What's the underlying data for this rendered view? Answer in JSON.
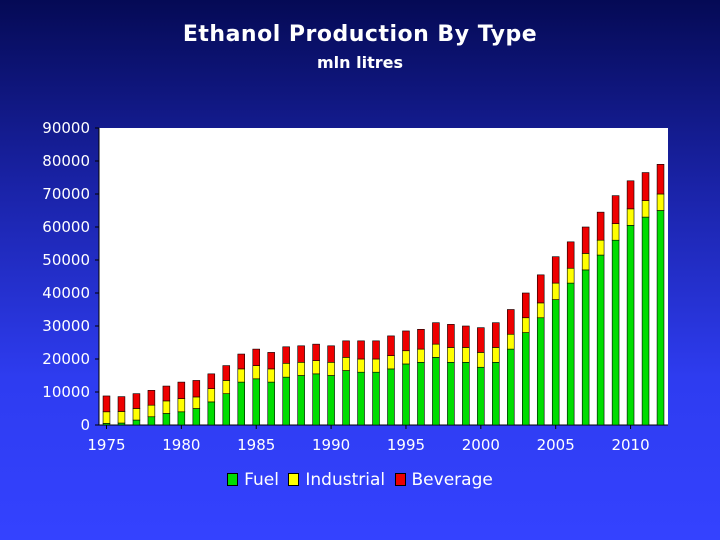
{
  "chart_data": {
    "type": "bar",
    "stacked": true,
    "title": "Ethanol Production By Type",
    "subtitle": "mln litres",
    "xlabel": "",
    "ylabel": "",
    "ylim": [
      0,
      90000
    ],
    "yticks": [
      "0",
      "10000",
      "20000",
      "30000",
      "40000",
      "50000",
      "60000",
      "70000",
      "80000",
      "90000"
    ],
    "xticks": [
      "1975",
      "1980",
      "1985",
      "1990",
      "1995",
      "2000",
      "2005",
      "2010"
    ],
    "categories": [
      1975,
      1976,
      1977,
      1978,
      1979,
      1980,
      1981,
      1982,
      1983,
      1984,
      1985,
      1986,
      1987,
      1988,
      1989,
      1990,
      1991,
      1992,
      1993,
      1994,
      1995,
      1996,
      1997,
      1998,
      1999,
      2000,
      2001,
      2002,
      2003,
      2004,
      2005,
      2006,
      2007,
      2008,
      2009,
      2010,
      2011,
      2012
    ],
    "legend_position": "bottom",
    "grid": false,
    "series": [
      {
        "name": "Fuel",
        "color": "#00dd00",
        "values": [
          500,
          600,
          1500,
          2500,
          3500,
          4000,
          5000,
          7000,
          9500,
          13000,
          14000,
          13000,
          14500,
          15000,
          15500,
          15000,
          16500,
          16000,
          16000,
          17000,
          18500,
          19000,
          20500,
          19000,
          19000,
          17500,
          19000,
          23000,
          28000,
          32500,
          38000,
          43000,
          47000,
          51500,
          56000,
          60500,
          63000,
          65000
        ]
      },
      {
        "name": "Industrial",
        "color": "#ffff00",
        "values": [
          3500,
          3500,
          3500,
          3500,
          3800,
          4000,
          3500,
          4000,
          4000,
          4000,
          4000,
          4000,
          4200,
          4000,
          4000,
          4000,
          4000,
          4000,
          4000,
          4000,
          4000,
          4000,
          4000,
          4500,
          4500,
          4500,
          4500,
          4500,
          4500,
          4500,
          5000,
          4500,
          5000,
          4500,
          5000,
          5000,
          5000,
          5000
        ]
      },
      {
        "name": "Beverage",
        "color": "#ee0000",
        "values": [
          4800,
          4500,
          4500,
          4500,
          4500,
          5000,
          5000,
          4500,
          4500,
          4500,
          5000,
          5000,
          5000,
          5000,
          5000,
          5000,
          5000,
          5500,
          5500,
          6000,
          6000,
          6000,
          6500,
          7000,
          6500,
          7500,
          7500,
          7500,
          7500,
          8500,
          8000,
          8000,
          8000,
          8500,
          8500,
          8500,
          8500,
          9000
        ]
      }
    ]
  }
}
